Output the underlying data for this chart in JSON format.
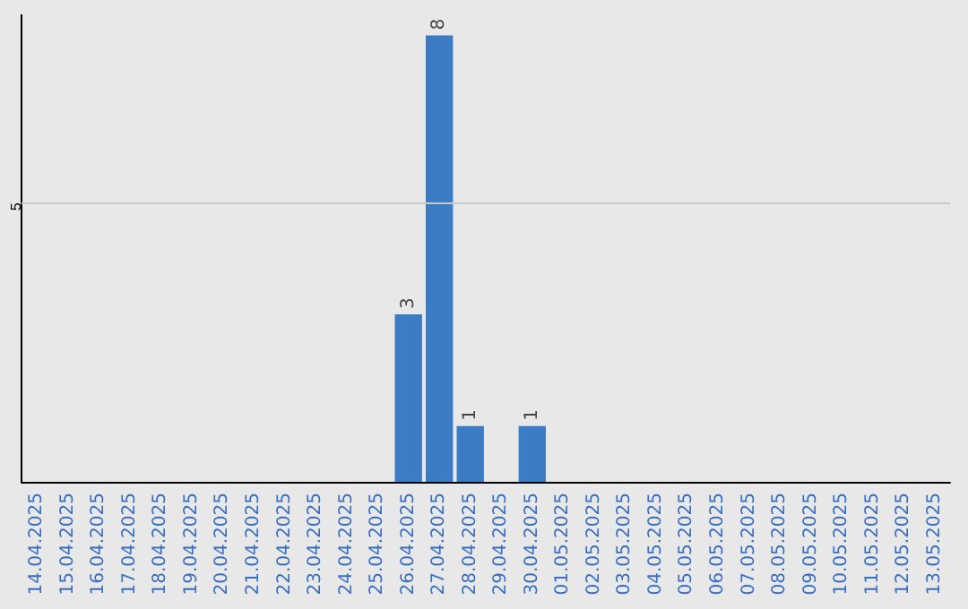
{
  "chart_data": {
    "type": "bar",
    "categories": [
      "14.04.2025",
      "15.04.2025",
      "16.04.2025",
      "17.04.2025",
      "18.04.2025",
      "19.04.2025",
      "20.04.2025",
      "21.04.2025",
      "22.04.2025",
      "23.04.2025",
      "24.04.2025",
      "25.04.2025",
      "26.04.2025",
      "27.04.2025",
      "28.04.2025",
      "29.04.2025",
      "30.04.2025",
      "01.05.2025",
      "02.05.2025",
      "03.05.2025",
      "04.05.2025",
      "05.05.2025",
      "06.05.2025",
      "07.05.2025",
      "08.05.2025",
      "09.05.2025",
      "10.05.2025",
      "11.05.2025",
      "12.05.2025",
      "13.05.2025"
    ],
    "values": [
      null,
      null,
      null,
      null,
      null,
      null,
      null,
      null,
      null,
      null,
      null,
      null,
      3,
      8,
      1,
      null,
      1,
      null,
      null,
      null,
      null,
      null,
      null,
      null,
      null,
      null,
      null,
      null,
      null,
      null
    ],
    "data_labels": true,
    "color": "#3b7cc4",
    "ref_lines": [
      {
        "axis": "y",
        "value": 5,
        "label": "5",
        "color": "#c8c8c8"
      }
    ]
  }
}
